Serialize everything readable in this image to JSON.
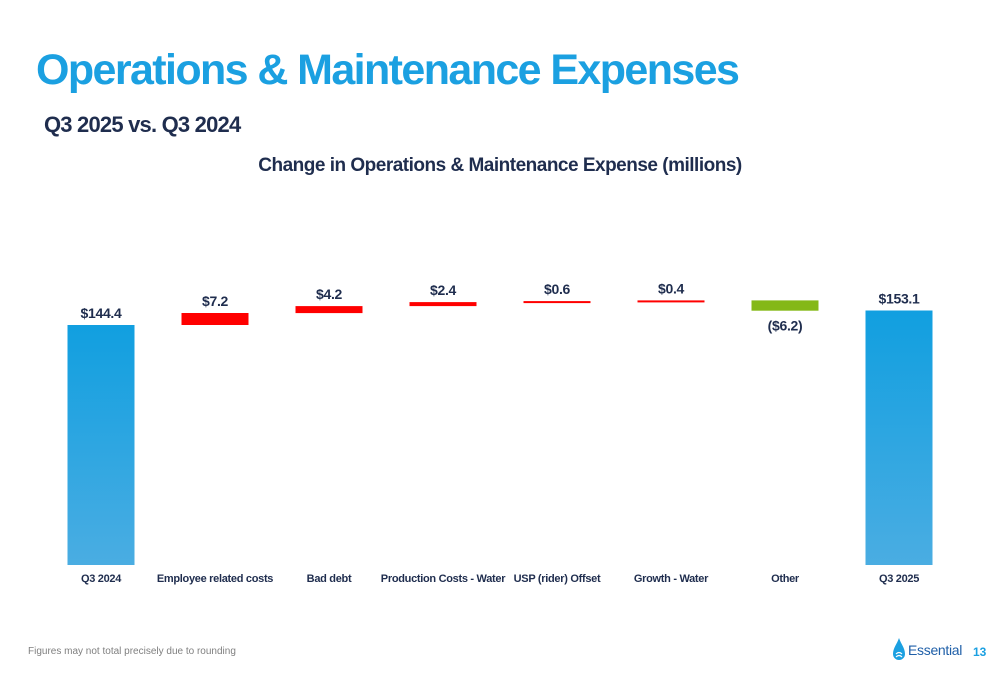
{
  "header": {
    "title": "Operations & Maintenance Expenses",
    "subtitle": "Q3 2025 vs. Q3 2024"
  },
  "chart_data": {
    "type": "bar",
    "subtype": "waterfall",
    "title": "Change in Operations & Maintenance Expense (millions)",
    "categories": [
      "Q3 2024",
      "Employee related costs",
      "Bad debt",
      "Production Costs - Water",
      "USP (rider) Offset",
      "Growth - Water",
      "Other",
      "Q3 2025"
    ],
    "values": [
      144.4,
      7.2,
      4.2,
      2.4,
      0.6,
      0.4,
      -6.2,
      153.1
    ],
    "kinds": [
      "total",
      "delta",
      "delta",
      "delta",
      "delta",
      "delta",
      "delta",
      "total"
    ],
    "labels": [
      "$144.4",
      "$7.2",
      "$4.2",
      "$2.4",
      "$0.6",
      "$0.4",
      "($6.2)",
      "$153.1"
    ],
    "colors": {
      "total": "#1BA0E1",
      "increase": "#FF0000",
      "decrease": "#84B817"
    },
    "ylim": [
      0,
      170
    ],
    "grid": false,
    "legend": "none"
  },
  "footer": {
    "note": "Figures may not total precisely due to rounding",
    "logo_text": "Essential",
    "page_number": "13"
  }
}
